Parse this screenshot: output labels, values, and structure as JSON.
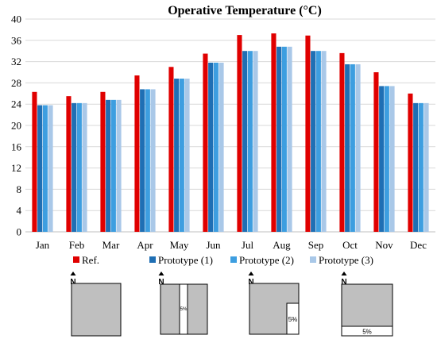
{
  "chart_data": {
    "type": "bar",
    "title": "Operative Temperature (°C)",
    "categories": [
      "Jan",
      "Feb",
      "Mar",
      "Apr",
      "May",
      "Jun",
      "Jul",
      "Aug",
      "Sep",
      "Oct",
      "Nov",
      "Dec"
    ],
    "ylim": [
      0,
      40
    ],
    "yticks": [
      0,
      4,
      8,
      12,
      16,
      20,
      24,
      28,
      32,
      36,
      40
    ],
    "grid": true,
    "legend_position": "bottom",
    "series": [
      {
        "name": "Ref.",
        "color": "#e00000",
        "values": [
          26.3,
          25.5,
          26.3,
          29.4,
          31.0,
          33.5,
          37.0,
          37.3,
          36.9,
          33.6,
          30.0,
          26.0
        ]
      },
      {
        "name": "Prototype (1)",
        "color": "#1f6fb4",
        "values": [
          23.8,
          24.2,
          24.8,
          26.8,
          28.8,
          31.8,
          34.0,
          34.8,
          34.0,
          31.5,
          27.4,
          24.2
        ]
      },
      {
        "name": "Prototype (2)",
        "color": "#3d9ee0",
        "values": [
          23.8,
          24.2,
          24.8,
          26.8,
          28.8,
          31.8,
          34.0,
          34.8,
          34.0,
          31.5,
          27.4,
          24.2
        ]
      },
      {
        "name": "Prototype (3)",
        "color": "#a9c8e8",
        "values": [
          23.8,
          24.2,
          24.8,
          26.8,
          28.8,
          31.8,
          34.0,
          34.8,
          34.0,
          31.5,
          27.4,
          24.2
        ]
      }
    ]
  },
  "diagrams": [
    {
      "north": "N",
      "label": ""
    },
    {
      "north": "N",
      "label": "5%"
    },
    {
      "north": "N",
      "label": "5%"
    },
    {
      "north": "N",
      "label": "5%"
    }
  ],
  "colors": {
    "grid": "#d9d9d9",
    "axis": "#bfbfbf",
    "shape": "#bfbfbf",
    "outline": "#000000"
  }
}
